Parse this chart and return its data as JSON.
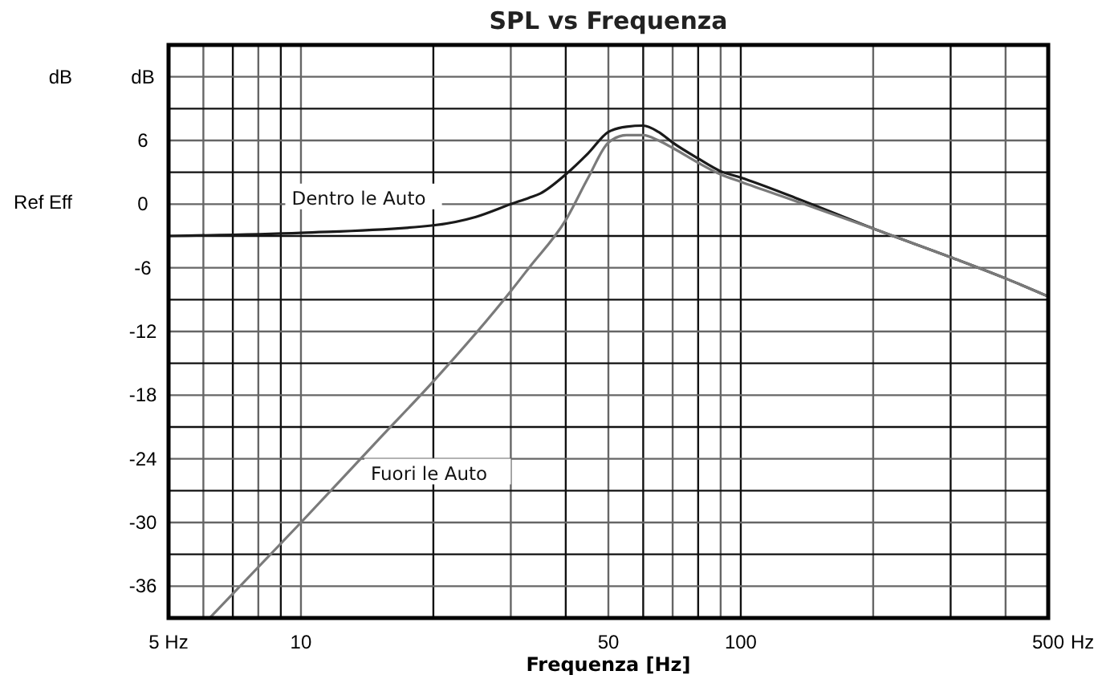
{
  "chart_data": {
    "type": "line",
    "title": "SPL vs Frequenza",
    "xlabel": "Frequenza [Hz]",
    "ylabel": "dB",
    "log": "x",
    "grid": true,
    "marker": "none",
    "line_style": "solid",
    "xlim": [
      5,
      500
    ],
    "ylim": [
      -39,
      15
    ],
    "xticks": [
      {
        "value": 5,
        "label": "5 Hz"
      },
      {
        "value": 6,
        "label": null
      },
      {
        "value": 7,
        "label": null
      },
      {
        "value": 8,
        "label": null
      },
      {
        "value": 9,
        "label": null
      },
      10,
      {
        "value": 20,
        "label": null
      },
      {
        "value": 30,
        "label": null
      },
      {
        "value": 40,
        "label": null
      },
      50,
      {
        "value": 60,
        "label": null
      },
      {
        "value": 70,
        "label": null
      },
      {
        "value": 80,
        "label": null
      },
      {
        "value": 90,
        "label": null
      },
      100,
      {
        "value": 200,
        "label": null
      },
      {
        "value": 300,
        "label": null
      },
      {
        "value": 400,
        "label": null
      },
      500
    ],
    "yticks": [
      -36,
      {
        "value": -33,
        "label": null
      },
      -30,
      {
        "value": -27,
        "label": null
      },
      -24,
      {
        "value": -21,
        "label": null
      },
      -18,
      {
        "value": -15,
        "label": null
      },
      -12,
      {
        "value": -9,
        "label": null
      },
      -6,
      {
        "value": -3,
        "label": null
      },
      0,
      {
        "value": 3,
        "label": null
      },
      6,
      {
        "value": 9,
        "label": null
      },
      {
        "value": 12,
        "label": "dB"
      }
    ],
    "annotations": [
      "Ref Eff",
      "Hz"
    ],
    "series": [
      {
        "name": "Dentro le Auto",
        "color": "#1a1a1a",
        "x": [
          5,
          10,
          20,
          25,
          30,
          33,
          35,
          40,
          45,
          50,
          55,
          60,
          65,
          70,
          80,
          90,
          100,
          133,
          200,
          300,
          400,
          500
        ],
        "values": [
          -3,
          -2.7,
          -2,
          -1.2,
          0,
          0.6,
          1,
          2.8,
          4.8,
          6.8,
          7.3,
          7.4,
          6.8,
          5.8,
          4.3,
          3.1,
          2.5,
          0.6,
          -2.3,
          -5,
          -7,
          -8.7
        ]
      },
      {
        "name": "Fuori le Auto",
        "color": "#7a7a7a",
        "x": [
          6.2,
          10,
          15,
          20,
          30,
          33,
          40,
          45,
          50,
          55,
          60,
          65,
          70,
          80,
          90,
          100,
          133,
          200,
          300,
          400,
          500
        ],
        "values": [
          -39,
          -30,
          -22.2,
          -16.7,
          -8.2,
          -6,
          -1.5,
          2.5,
          5.8,
          6.5,
          6.5,
          6,
          5.3,
          3.9,
          2.8,
          2.1,
          0.3,
          -2.3,
          -5,
          -7,
          -8.7
        ]
      }
    ]
  }
}
